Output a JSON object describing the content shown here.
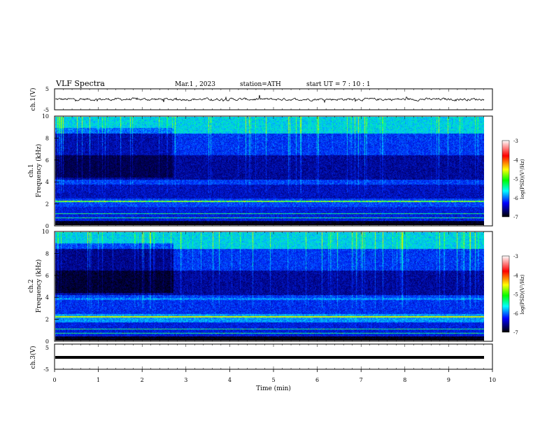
{
  "header": {
    "title": "VLF  Spectra",
    "date": "Mar.1  , 2023",
    "station": "station=ATH",
    "start": "start  UT  =    7  : 10 : 1"
  },
  "colorbar": {
    "label": "log(PSD)(V²/Hz)",
    "ticks": [
      "-3",
      "-4",
      "-5",
      "-6",
      "-7"
    ],
    "colors": [
      "#ffffff",
      "#ff0000",
      "#ffff00",
      "#00ff00",
      "#00ffff",
      "#0000ff",
      "#000000"
    ]
  },
  "chart_data": [
    {
      "type": "line",
      "title": "",
      "ylabel": "ch.1(V)",
      "ylim": [
        -5,
        5
      ],
      "yticks": [
        "5",
        "-5"
      ],
      "description_values": {
        "level": 0,
        "variation": [
          -0.8,
          0.8
        ]
      },
      "xlim": [
        0,
        10
      ]
    },
    {
      "type": "heatmap",
      "ylabel": "ch.1\nFrequency (kHz)",
      "ylabel_lines": [
        "ch.1",
        "Frequency (kHz)"
      ],
      "ylim": [
        0,
        10
      ],
      "yticks": [
        "0",
        "2",
        "4",
        "6",
        "8",
        "10"
      ],
      "xlim": [
        0,
        10
      ],
      "data_end_min": 9.8,
      "color_scale": "log(PSD)(V²/Hz)",
      "zlim": [
        -7,
        -3
      ]
    },
    {
      "type": "heatmap",
      "ylabel": "ch.2\nFrequency (kHz)",
      "ylabel_lines": [
        "ch.2",
        "Frequency (kHz)"
      ],
      "ylim": [
        0,
        10
      ],
      "yticks": [
        "0",
        "2",
        "4",
        "6",
        "8",
        "10"
      ],
      "xlim": [
        0,
        10
      ],
      "data_end_min": 9.8,
      "color_scale": "log(PSD)(V²/Hz)",
      "zlim": [
        -7,
        -3
      ]
    },
    {
      "type": "line",
      "ylabel": "ch.3(V)",
      "ylim": [
        -5,
        5
      ],
      "yticks": [
        "5",
        "-5"
      ],
      "values_const": 0,
      "xlim": [
        0,
        10
      ],
      "xlabel": "Time  (min)",
      "xticks": [
        "0",
        "1",
        "2",
        "3",
        "4",
        "5",
        "6",
        "7",
        "8",
        "9",
        "10"
      ]
    }
  ]
}
